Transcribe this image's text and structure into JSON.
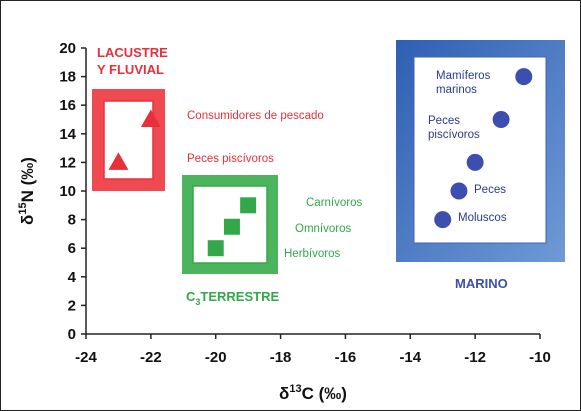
{
  "chart_data": {
    "type": "scatter",
    "title": "",
    "xlabel": "δ13C (‰)",
    "ylabel": "δ15N (‰)",
    "xlim": [
      -24,
      -10
    ],
    "ylim": [
      0,
      20
    ],
    "x_ticks": [
      "-24",
      "-22",
      "-20",
      "-18",
      "-16",
      "-14",
      "-12",
      "-10"
    ],
    "y_ticks": [
      "0",
      "2",
      "4",
      "6",
      "8",
      "10",
      "12",
      "14",
      "16",
      "18",
      "20"
    ],
    "grid": false,
    "colors": {
      "lacustre": "#e8303a",
      "terrestre": "#33a84a",
      "marino": "#3d4fae",
      "marino_box": "#4a78c4"
    },
    "series": [
      {
        "name": "LACUSTRE Y FLUVIAL",
        "marker": "triangle",
        "color": "#e8303a",
        "points": [
          {
            "x": -23,
            "y": 12
          },
          {
            "x": -22,
            "y": 15
          }
        ]
      },
      {
        "name": "C3TERRESTRE",
        "marker": "square",
        "color": "#33a84a",
        "points": [
          {
            "x": -20,
            "y": 6
          },
          {
            "x": -19.5,
            "y": 7.5
          },
          {
            "x": -19,
            "y": 9
          }
        ]
      },
      {
        "name": "MARINO",
        "marker": "circle",
        "color": "#3d4fae",
        "points": [
          {
            "x": -13,
            "y": 8
          },
          {
            "x": -12.5,
            "y": 10
          },
          {
            "x": -12,
            "y": 12
          },
          {
            "x": -11.2,
            "y": 15
          },
          {
            "x": -10.5,
            "y": 18
          }
        ]
      }
    ],
    "annotations": {
      "lacustre_title_1": "LACUSTRE",
      "lacustre_title_2": "Y FLUVIAL",
      "consumidores": "Consumidores de pescado",
      "peces_lac": "Peces piscívoros",
      "terrestre_c": "C",
      "terrestre_sub": "3",
      "terrestre_rest": "TERRESTRE",
      "carnivoros": "Carnívoros",
      "omnivoros": "Omnívoros",
      "herbivoros": "Herbívoros",
      "mamiferos_1": "Mamíferos",
      "mamiferos_2": "marinos",
      "peces_pisc_1": "Peces",
      "peces_pisc_2": "piscívoros",
      "peces": "Peces",
      "moluscos": "Moluscos",
      "marino": "MARINO"
    }
  }
}
